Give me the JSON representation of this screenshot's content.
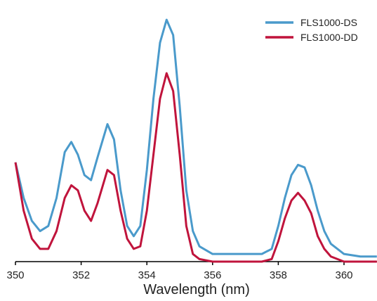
{
  "chart_data": {
    "type": "line",
    "x_label": "Wavelength (nm)",
    "x": [
      350.0,
      350.25,
      350.5,
      350.75,
      351.0,
      351.25,
      351.5,
      351.7,
      351.9,
      352.1,
      352.3,
      352.5,
      352.8,
      353.0,
      353.2,
      353.4,
      353.6,
      353.8,
      354.0,
      354.2,
      354.4,
      354.6,
      354.8,
      355.0,
      355.2,
      355.4,
      355.6,
      356.0,
      356.5,
      357.0,
      357.5,
      357.8,
      358.0,
      358.2,
      358.4,
      358.6,
      358.8,
      359.0,
      359.2,
      359.4,
      359.6,
      360.0,
      360.5,
      361.0
    ],
    "series": [
      {
        "name": "FLS1000-DS",
        "color": "#4a9acb",
        "values": [
          39,
          25,
          16,
          12,
          14,
          25,
          43,
          47,
          42,
          34,
          32,
          41,
          54,
          48,
          28,
          14,
          10,
          14,
          36,
          64,
          86,
          95,
          89,
          61,
          28,
          12,
          6,
          3,
          3,
          3,
          3,
          5,
          14,
          25,
          34,
          38,
          37,
          30,
          20,
          12,
          7,
          3,
          2,
          2
        ]
      },
      {
        "name": "FLS1000-DD",
        "color": "#c0143c",
        "values": [
          39,
          20,
          9,
          5,
          5,
          12,
          25,
          30,
          28,
          20,
          16,
          23,
          36,
          34,
          20,
          9,
          5,
          6,
          20,
          42,
          64,
          74,
          67,
          42,
          14,
          3,
          1,
          0,
          0,
          0,
          0,
          1,
          8,
          17,
          24,
          27,
          24,
          19,
          10,
          5,
          2,
          0,
          0,
          0
        ]
      }
    ],
    "xlim": [
      350,
      361
    ],
    "xticks": [
      350,
      352,
      354,
      356,
      358,
      360
    ],
    "ylim": [
      0,
      100
    ],
    "legend": "top-right"
  }
}
